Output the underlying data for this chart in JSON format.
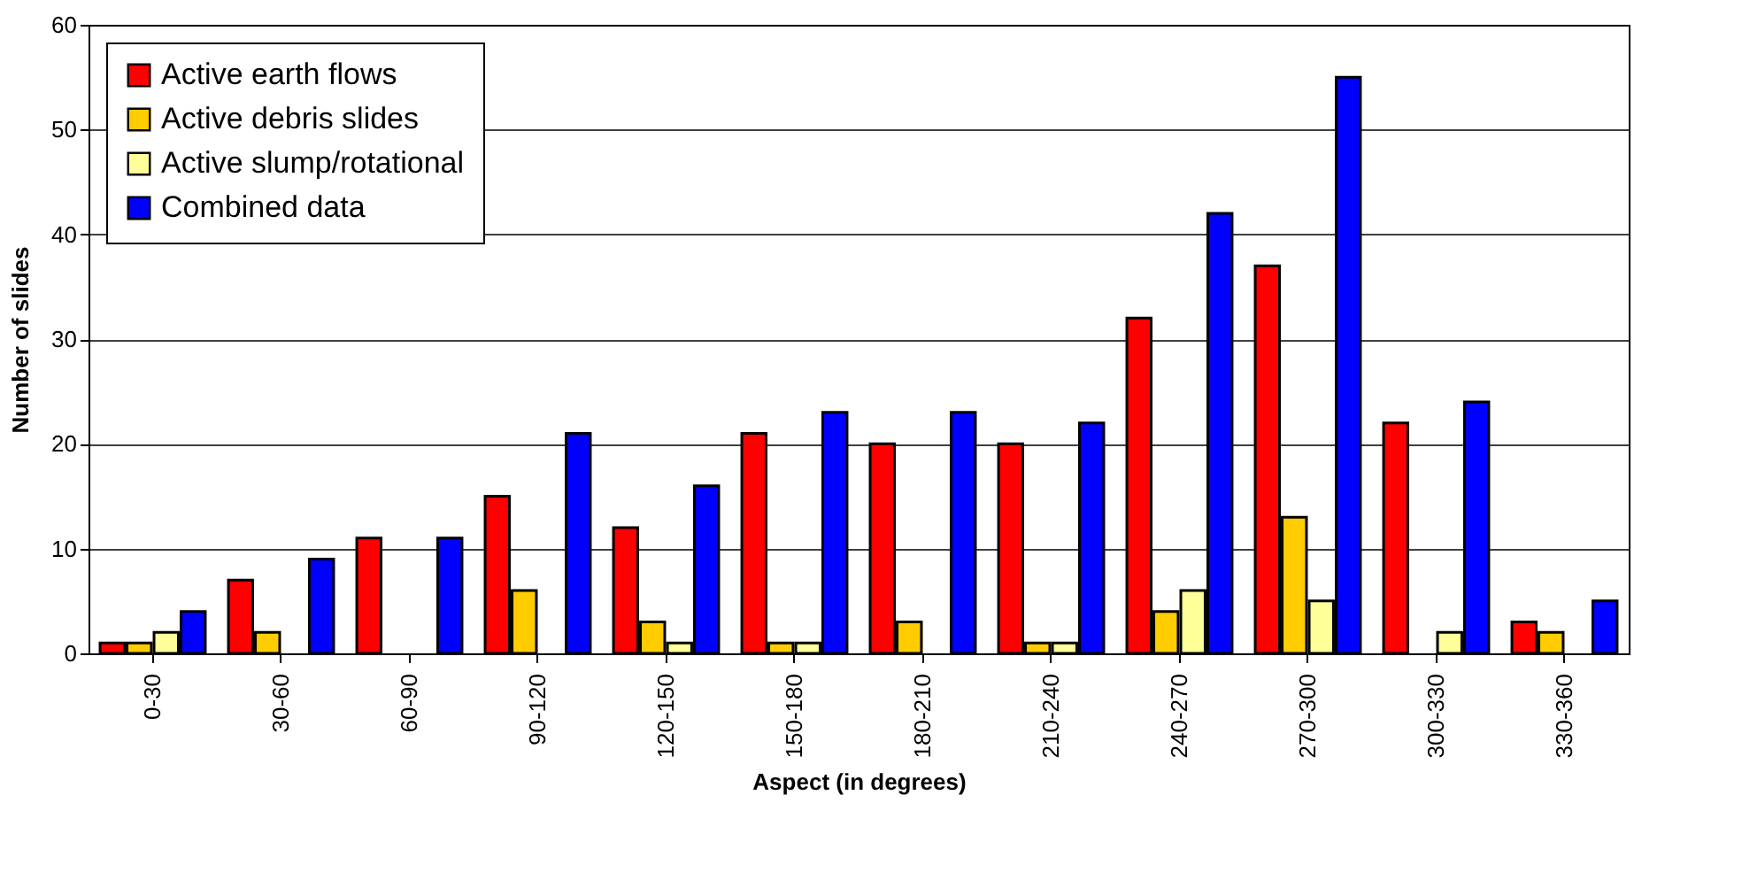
{
  "chart_data": {
    "type": "bar",
    "xlabel": "Aspect (in degrees)",
    "ylabel": "Number of slides",
    "categories": [
      "0-30",
      "30-60",
      "60-90",
      "90-120",
      "120-150",
      "150-180",
      "180-210",
      "210-240",
      "240-270",
      "270-300",
      "300-330",
      "330-360"
    ],
    "series": [
      {
        "name": "Active earth flows",
        "color": "#ff0000",
        "values": [
          1,
          7,
          11,
          15,
          12,
          21,
          20,
          20,
          32,
          37,
          22,
          3
        ]
      },
      {
        "name": "Active debris slides",
        "color": "#ffcc00",
        "values": [
          1,
          2,
          null,
          6,
          3,
          1,
          3,
          1,
          4,
          13,
          null,
          2
        ]
      },
      {
        "name": "Active slump/rotational",
        "color": "#ffff99",
        "values": [
          2,
          null,
          null,
          null,
          1,
          1,
          null,
          1,
          6,
          5,
          2,
          null
        ]
      },
      {
        "name": "Combined data",
        "color": "#0000ff",
        "values": [
          4,
          9,
          11,
          21,
          16,
          23,
          23,
          22,
          42,
          55,
          24,
          5
        ]
      }
    ],
    "ylim": [
      0,
      60
    ],
    "yticks": [
      0,
      10,
      20,
      30,
      40,
      50,
      60
    ],
    "grid": "y",
    "legend": "top left"
  }
}
